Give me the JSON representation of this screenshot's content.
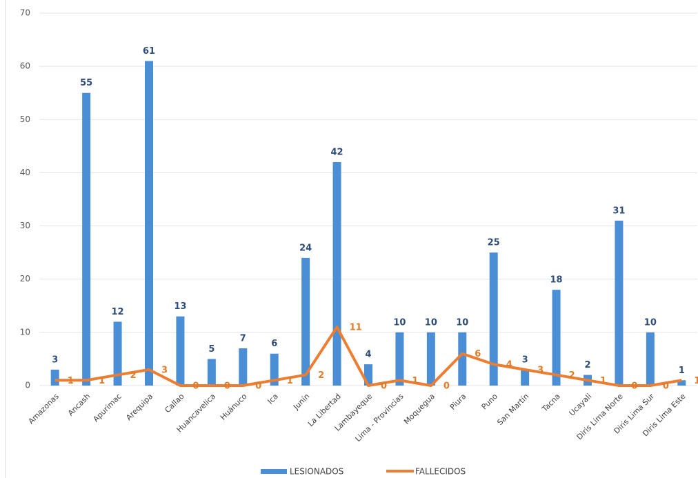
{
  "chart_data": {
    "type": "bar",
    "categories": [
      "Amazonas",
      "Ancash",
      "Apurimac",
      "Arequipa",
      "Callao",
      "Huancavelica",
      "Huánuco",
      "Ica",
      "Junín",
      "La Libertad",
      "Lambayeque",
      "Lima - Provincias",
      "Moquegua",
      "Piura",
      "Puno",
      "San Martín",
      "Tacna",
      "Ucayali",
      "Diris Lima Norte",
      "Diris Lima Sur",
      "Diris Lima Este"
    ],
    "series": [
      {
        "name": "LESIONADOS",
        "type": "bar",
        "color": "#4a8fd6",
        "values": [
          3,
          55,
          12,
          61,
          13,
          5,
          7,
          6,
          24,
          42,
          4,
          10,
          10,
          10,
          25,
          3,
          18,
          2,
          31,
          10,
          1
        ]
      },
      {
        "name": "FALLECIDOS",
        "type": "line",
        "color": "#ed7d31",
        "values": [
          1,
          1,
          2,
          3,
          0,
          0,
          0,
          1,
          2,
          11,
          0,
          1,
          0,
          6,
          4,
          3,
          2,
          1,
          0,
          0,
          1
        ]
      }
    ],
    "ylim": [
      0,
      70
    ],
    "yticks": [
      0,
      10,
      20,
      30,
      40,
      50,
      60,
      70
    ],
    "grid": true,
    "legend": "bottom"
  }
}
